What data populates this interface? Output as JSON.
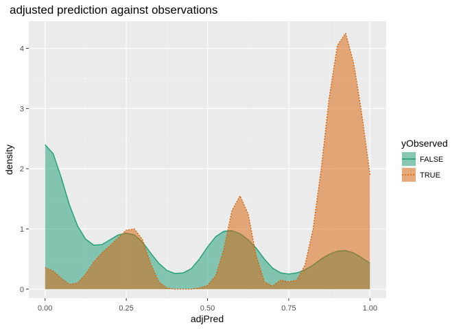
{
  "chart_data": {
    "type": "area",
    "title": "adjusted prediction against observations",
    "xlabel": "adjPred",
    "ylabel": "density",
    "xlim": [
      -0.05,
      1.05
    ],
    "ylim": [
      -0.15,
      4.45
    ],
    "x_ticks": [
      0.0,
      0.25,
      0.5,
      0.75,
      1.0
    ],
    "x_tick_labels": [
      "0.00",
      "0.25",
      "0.50",
      "0.75",
      "1.00"
    ],
    "y_ticks": [
      0,
      1,
      2,
      3,
      4
    ],
    "y_tick_labels": [
      "0",
      "1",
      "2",
      "3",
      "4"
    ],
    "grid": true,
    "legend": {
      "title": "yObserved",
      "position": "right"
    },
    "series": [
      {
        "name": "FALSE",
        "color": "#1b9e77",
        "line_style": "solid",
        "x": [
          0.0,
          0.025,
          0.05,
          0.075,
          0.1,
          0.125,
          0.15,
          0.175,
          0.2,
          0.225,
          0.25,
          0.275,
          0.3,
          0.325,
          0.35,
          0.375,
          0.4,
          0.425,
          0.45,
          0.475,
          0.5,
          0.525,
          0.55,
          0.575,
          0.6,
          0.625,
          0.65,
          0.675,
          0.7,
          0.725,
          0.75,
          0.775,
          0.8,
          0.825,
          0.85,
          0.875,
          0.9,
          0.925,
          0.95,
          0.975,
          1.0
        ],
        "values": [
          2.4,
          2.25,
          1.85,
          1.4,
          1.05,
          0.83,
          0.73,
          0.74,
          0.82,
          0.9,
          0.93,
          0.9,
          0.78,
          0.6,
          0.43,
          0.31,
          0.26,
          0.27,
          0.34,
          0.5,
          0.7,
          0.87,
          0.96,
          0.97,
          0.92,
          0.82,
          0.68,
          0.5,
          0.35,
          0.27,
          0.25,
          0.27,
          0.32,
          0.4,
          0.5,
          0.58,
          0.63,
          0.64,
          0.6,
          0.52,
          0.43
        ]
      },
      {
        "name": "TRUE",
        "color": "#d95f02",
        "line_style": "dotted",
        "x": [
          0.0,
          0.025,
          0.05,
          0.075,
          0.1,
          0.125,
          0.15,
          0.175,
          0.2,
          0.225,
          0.25,
          0.275,
          0.3,
          0.325,
          0.35,
          0.375,
          0.4,
          0.425,
          0.45,
          0.475,
          0.5,
          0.525,
          0.55,
          0.575,
          0.6,
          0.625,
          0.65,
          0.675,
          0.7,
          0.725,
          0.75,
          0.775,
          0.8,
          0.825,
          0.85,
          0.875,
          0.9,
          0.925,
          0.95,
          0.975,
          1.0
        ],
        "values": [
          0.36,
          0.3,
          0.18,
          0.08,
          0.1,
          0.25,
          0.45,
          0.6,
          0.72,
          0.85,
          0.98,
          1.0,
          0.82,
          0.42,
          0.12,
          0.02,
          0.0,
          0.0,
          0.0,
          0.02,
          0.06,
          0.22,
          0.65,
          1.3,
          1.55,
          1.25,
          0.55,
          0.12,
          0.05,
          0.15,
          0.12,
          0.15,
          0.4,
          1.0,
          2.0,
          3.2,
          4.05,
          4.25,
          3.75,
          2.9,
          1.9
        ]
      }
    ]
  }
}
